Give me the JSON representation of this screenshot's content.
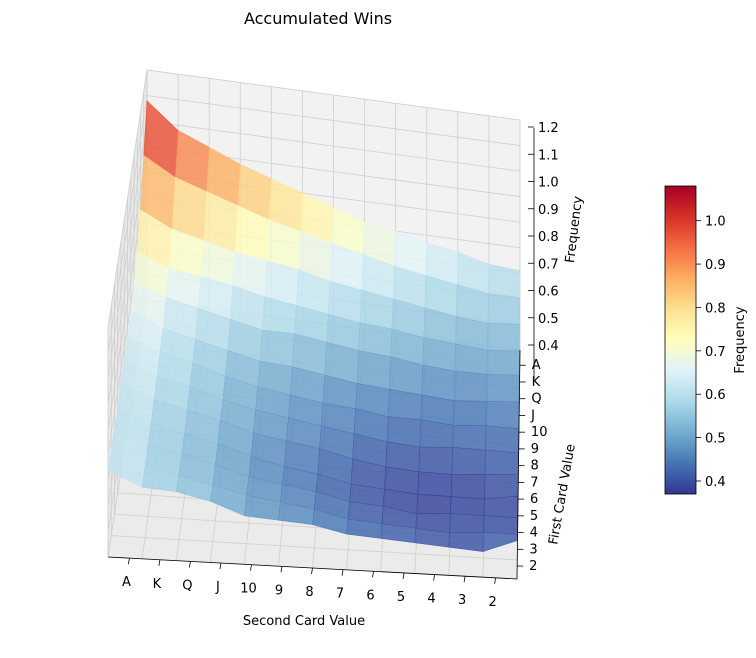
{
  "chart_data": {
    "type": "surface3d",
    "title": "Accumulated Wins",
    "xlabel": "Second Card Value",
    "ylabel": "First Card Value",
    "zlabel": "Frequency",
    "x_categories": [
      "A",
      "K",
      "Q",
      "J",
      "10",
      "9",
      "8",
      "7",
      "6",
      "5",
      "4",
      "3",
      "2"
    ],
    "y_categories": [
      "2",
      "3",
      "4",
      "5",
      "6",
      "7",
      "8",
      "9",
      "10",
      "J",
      "Q",
      "K",
      "A"
    ],
    "z_ticks": [
      "0.4",
      "0.5",
      "0.6",
      "0.7",
      "0.8",
      "0.9",
      "1.0",
      "1.1",
      "1.2"
    ],
    "zlim": [
      0.3,
      1.2
    ],
    "colorbar": {
      "label": "Frequency",
      "ticks": [
        "0.4",
        "0.5",
        "0.6",
        "0.7",
        "0.8",
        "0.9",
        "1.0"
      ],
      "range": [
        0.37,
        1.08
      ],
      "colormap": "RdYlBu_r"
    },
    "grid": true,
    "z_values_note_rows": "rows follow y_categories order (2 to A), columns follow x_categories order (A to 2)",
    "z": [
      [
        0.64,
        0.58,
        0.57,
        0.54,
        0.49,
        0.48,
        0.47,
        0.44,
        0.43,
        0.42,
        0.41,
        0.4,
        0.45
      ],
      [
        0.64,
        0.58,
        0.55,
        0.52,
        0.49,
        0.47,
        0.45,
        0.42,
        0.41,
        0.4,
        0.39,
        0.4,
        0.4
      ],
      [
        0.64,
        0.58,
        0.55,
        0.52,
        0.48,
        0.46,
        0.44,
        0.41,
        0.4,
        0.38,
        0.39,
        0.39,
        0.39
      ],
      [
        0.63,
        0.58,
        0.55,
        0.52,
        0.48,
        0.45,
        0.43,
        0.4,
        0.39,
        0.38,
        0.38,
        0.38,
        0.4
      ],
      [
        0.65,
        0.59,
        0.56,
        0.53,
        0.49,
        0.47,
        0.45,
        0.42,
        0.4,
        0.39,
        0.39,
        0.4,
        0.41
      ],
      [
        0.65,
        0.6,
        0.57,
        0.53,
        0.5,
        0.48,
        0.46,
        0.44,
        0.42,
        0.41,
        0.42,
        0.42,
        0.42
      ],
      [
        0.66,
        0.61,
        0.58,
        0.54,
        0.51,
        0.49,
        0.47,
        0.46,
        0.44,
        0.44,
        0.43,
        0.44,
        0.44
      ],
      [
        0.68,
        0.62,
        0.59,
        0.56,
        0.53,
        0.52,
        0.5,
        0.48,
        0.47,
        0.46,
        0.45,
        0.46,
        0.47
      ],
      [
        0.7,
        0.66,
        0.63,
        0.6,
        0.57,
        0.57,
        0.55,
        0.53,
        0.52,
        0.5,
        0.49,
        0.49,
        0.5
      ],
      [
        0.74,
        0.69,
        0.67,
        0.65,
        0.62,
        0.6,
        0.58,
        0.56,
        0.55,
        0.53,
        0.52,
        0.51,
        0.52
      ],
      [
        0.82,
        0.76,
        0.73,
        0.7,
        0.68,
        0.66,
        0.63,
        0.61,
        0.59,
        0.57,
        0.55,
        0.54,
        0.55
      ],
      [
        0.95,
        0.88,
        0.84,
        0.8,
        0.76,
        0.73,
        0.7,
        0.67,
        0.64,
        0.62,
        0.6,
        0.58,
        0.58
      ],
      [
        1.08,
        0.98,
        0.93,
        0.88,
        0.84,
        0.8,
        0.76,
        0.72,
        0.7,
        0.67,
        0.65,
        0.62,
        0.61
      ]
    ]
  }
}
